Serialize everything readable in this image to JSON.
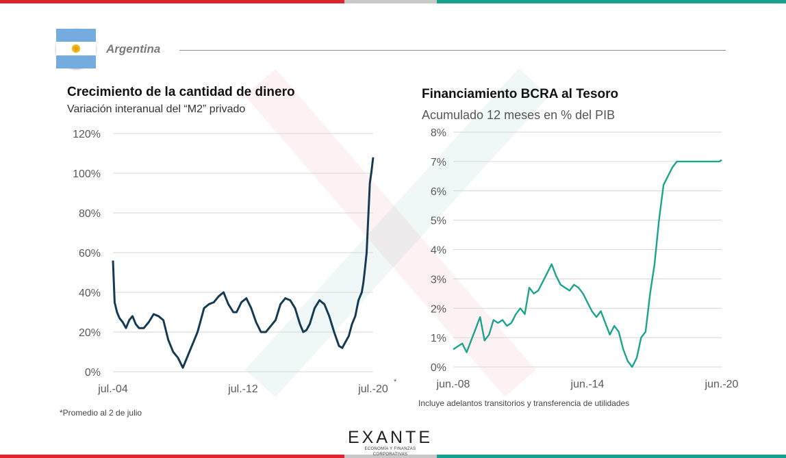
{
  "brand": {
    "colors": {
      "red": "#e0242f",
      "gray": "#c8c8c8",
      "green": "#19a08c",
      "navy": "#163a52",
      "teal": "#1aa38f"
    }
  },
  "header": {
    "country": "Argentina",
    "flag_icon": "argentina-flag-icon"
  },
  "logo": {
    "name": "EXANTE",
    "tagline": "ECONOMÍA Y FINANZAS CORPORATIVAS"
  },
  "chart_data": [
    {
      "type": "line",
      "title": "Crecimiento de la cantidad de dinero",
      "subtitle": "Variación interanual del “M2” privado",
      "xlabel": "",
      "ylabel": "",
      "ylim": [
        0,
        120
      ],
      "yticks": [
        "0%",
        "20%",
        "40%",
        "60%",
        "80%",
        "100%",
        "120%"
      ],
      "x_range": [
        2004.5,
        2020.5
      ],
      "xticks": [
        {
          "label": "jul.-04",
          "x": 2004.5
        },
        {
          "label": "jul.-12",
          "x": 2012.5
        },
        {
          "label": "jul.-20",
          "x": 2020.5
        }
      ],
      "xtick_footnote_marker": "*",
      "grid": true,
      "color": "#163a52",
      "series": [
        {
          "x": [
            2004.5,
            2004.6,
            2004.75,
            2004.9,
            2005.1,
            2005.3,
            2005.5,
            2005.7,
            2005.9,
            2006.1,
            2006.4,
            2006.7,
            2007.0,
            2007.3,
            2007.6,
            2007.9,
            2008.2,
            2008.5,
            2008.8,
            2009.1,
            2009.3,
            2009.5,
            2009.7,
            2009.9,
            2010.1,
            2010.4,
            2010.7,
            2011.0,
            2011.3,
            2011.6,
            2011.9,
            2012.1,
            2012.4,
            2012.7,
            2013.0,
            2013.3,
            2013.6,
            2013.9,
            2014.2,
            2014.5,
            2014.8,
            2015.1,
            2015.4,
            2015.7,
            2016.0,
            2016.2,
            2016.4,
            2016.6,
            2016.9,
            2017.2,
            2017.5,
            2017.8,
            2018.1,
            2018.4,
            2018.6,
            2018.8,
            2019.0,
            2019.2,
            2019.4,
            2019.6,
            2019.8,
            2019.9,
            2020.0,
            2020.1,
            2020.2,
            2020.3,
            2020.4,
            2020.5
          ],
          "values": [
            56,
            35,
            30,
            27,
            25,
            22,
            26,
            28,
            24,
            22,
            22,
            25,
            29,
            28,
            26,
            16,
            10,
            7,
            2,
            8,
            12,
            16,
            20,
            26,
            32,
            34,
            35,
            38,
            40,
            34,
            30,
            30,
            35,
            37,
            32,
            25,
            20,
            20,
            23,
            26,
            34,
            37,
            36,
            32,
            24,
            20,
            21,
            24,
            32,
            36,
            34,
            28,
            20,
            13,
            12,
            15,
            18,
            24,
            28,
            36,
            40,
            45,
            52,
            60,
            78,
            95,
            101,
            108
          ]
        }
      ]
    },
    {
      "type": "line",
      "title": "Financiamiento BCRA al Tesoro",
      "subtitle": "Acumulado 12 meses en % del PIB",
      "xlabel": "",
      "ylabel": "",
      "ylim": [
        0,
        8
      ],
      "yticks": [
        "0%",
        "1%",
        "2%",
        "3%",
        "4%",
        "5%",
        "6%",
        "7%",
        "8%"
      ],
      "x_range": [
        2008.4,
        2020.4
      ],
      "xticks": [
        {
          "label": "jun.-08",
          "x": 2008.4
        },
        {
          "label": "jun.-14",
          "x": 2014.4
        },
        {
          "label": "jun.-20",
          "x": 2020.4
        }
      ],
      "grid": true,
      "color": "#1aa38f",
      "footnote": "Incluye adelantos transitorios y transferencia de utilidades",
      "series": [
        {
          "x": [
            2008.4,
            2008.6,
            2008.8,
            2009.0,
            2009.2,
            2009.4,
            2009.6,
            2009.8,
            2010.0,
            2010.2,
            2010.4,
            2010.6,
            2010.8,
            2011.0,
            2011.2,
            2011.4,
            2011.6,
            2011.8,
            2012.0,
            2012.2,
            2012.4,
            2012.6,
            2012.8,
            2013.0,
            2013.2,
            2013.4,
            2013.6,
            2013.8,
            2014.0,
            2014.2,
            2014.4,
            2014.6,
            2014.8,
            2015.0,
            2015.2,
            2015.4,
            2015.6,
            2015.8,
            2016.0,
            2016.2,
            2016.4,
            2016.6,
            2016.8,
            2017.0,
            2017.2,
            2017.4,
            2017.6,
            2017.8,
            2018.0,
            2018.2,
            2018.4,
            2018.6,
            2018.8,
            2019.0,
            2019.2,
            2019.4,
            2019.6,
            2019.8,
            2019.9,
            2020.0,
            2020.1,
            2020.2,
            2020.3,
            2020.4
          ],
          "values": [
            0.6,
            0.7,
            0.8,
            0.5,
            0.9,
            1.3,
            1.7,
            0.9,
            1.1,
            1.6,
            1.5,
            1.6,
            1.4,
            1.5,
            1.8,
            2.0,
            1.8,
            2.7,
            2.5,
            2.6,
            2.9,
            3.2,
            3.5,
            3.1,
            2.8,
            2.7,
            2.6,
            2.8,
            2.7,
            2.5,
            2.2,
            1.9,
            1.7,
            1.9,
            1.5,
            1.1,
            1.4,
            1.2,
            0.6,
            0.2,
            0.0,
            0.3,
            1.0,
            1.2,
            2.5,
            3.5,
            5.0,
            6.2,
            6.5,
            6.8,
            7.0,
            7.0,
            7.0,
            7.0,
            7.0,
            7.0,
            7.0,
            7.0,
            7.0,
            7.0,
            7.0,
            7.0,
            7.0,
            7.05
          ]
        }
      ]
    }
  ],
  "footnotes": {
    "left": "*Promedio al 2 de julio"
  }
}
